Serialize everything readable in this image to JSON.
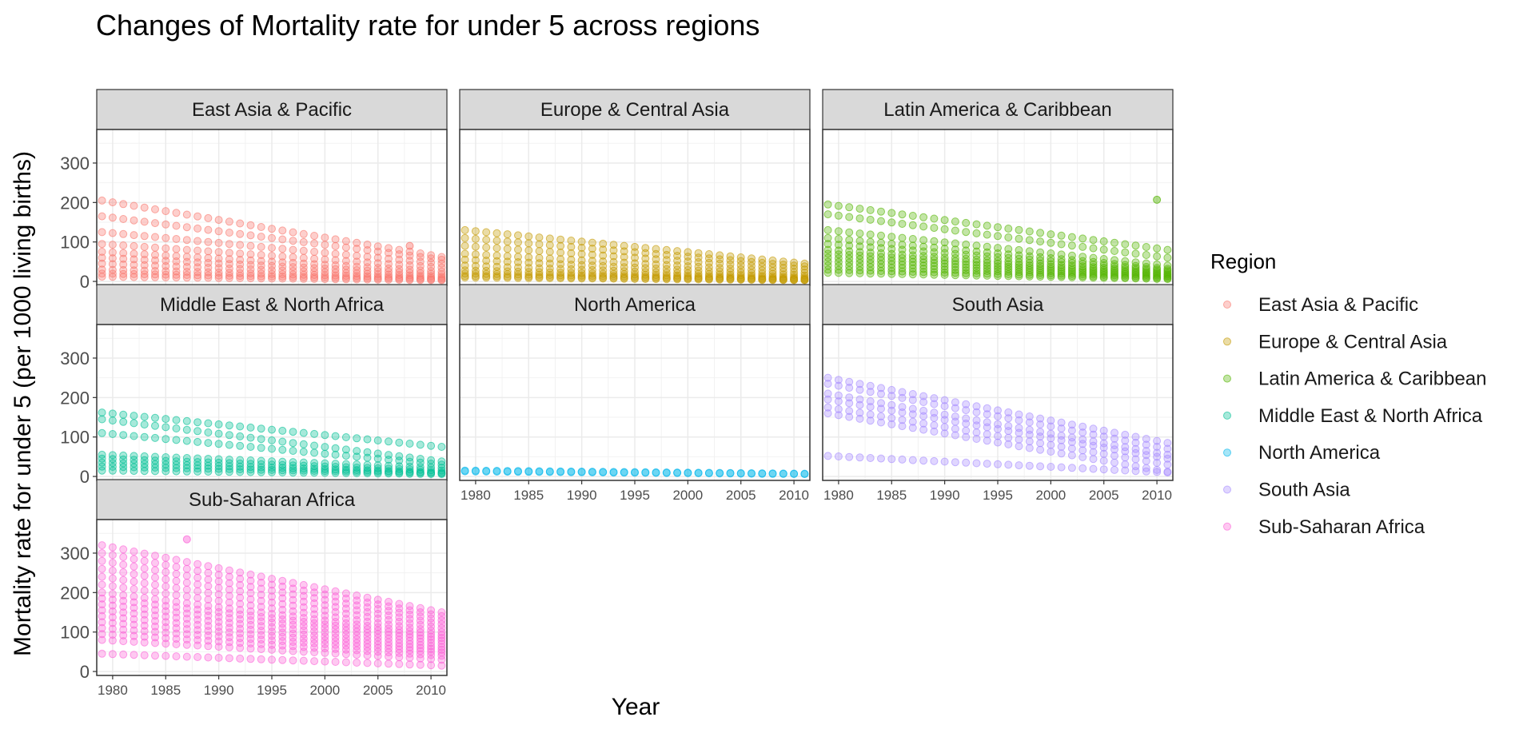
{
  "chart_data": {
    "type": "scatter",
    "facet": true,
    "title": "Changes of Mortality rate for under 5 across regions",
    "xlabel": "Year",
    "ylabel": "Mortality rate for under 5 (per 1000 living births)",
    "xlim": [
      1978.5,
      2011.5
    ],
    "ylim": [
      -10,
      385
    ],
    "x_ticks": [
      1980,
      1985,
      1990,
      1995,
      2000,
      2005,
      2010
    ],
    "x_tick_labels": [
      "1980",
      "1985",
      "1990",
      "1995",
      "2000",
      "2005",
      "2010"
    ],
    "y_ticks": [
      0,
      100,
      200,
      300
    ],
    "y_tick_labels": [
      "0",
      "100",
      "200",
      "300"
    ],
    "grid": true,
    "legend": {
      "title": "Region",
      "position": "right"
    },
    "marker_opacity": 0.35,
    "panels": [
      {
        "name": "East Asia & Pacific",
        "color": "#F8766D",
        "year_range": [
          1979,
          2011
        ],
        "lines": [
          {
            "start": 205,
            "end": 62
          },
          {
            "start": 165,
            "end": 55
          },
          {
            "start": 125,
            "end": 45
          },
          {
            "start": 95,
            "end": 35
          },
          {
            "start": 75,
            "end": 25
          },
          {
            "start": 60,
            "end": 18
          },
          {
            "start": 45,
            "end": 12
          },
          {
            "start": 30,
            "end": 8
          },
          {
            "start": 20,
            "end": 5
          },
          {
            "start": 12,
            "end": 3
          }
        ],
        "outliers": [
          {
            "x": 2008,
            "y": 90
          }
        ]
      },
      {
        "name": "Europe & Central Asia",
        "color": "#C49A00",
        "year_range": [
          1979,
          2011
        ],
        "lines": [
          {
            "start": 130,
            "end": 45
          },
          {
            "start": 110,
            "end": 38
          },
          {
            "start": 90,
            "end": 30
          },
          {
            "start": 70,
            "end": 22
          },
          {
            "start": 55,
            "end": 15
          },
          {
            "start": 40,
            "end": 10
          },
          {
            "start": 28,
            "end": 7
          },
          {
            "start": 20,
            "end": 5
          },
          {
            "start": 14,
            "end": 4
          },
          {
            "start": 10,
            "end": 3
          }
        ],
        "outliers": []
      },
      {
        "name": "Latin America & Caribbean",
        "color": "#53B400",
        "year_range": [
          1979,
          2011
        ],
        "lines": [
          {
            "start": 195,
            "end": 80
          },
          {
            "start": 170,
            "end": 60
          },
          {
            "start": 130,
            "end": 40
          },
          {
            "start": 110,
            "end": 32
          },
          {
            "start": 95,
            "end": 28
          },
          {
            "start": 80,
            "end": 24
          },
          {
            "start": 70,
            "end": 20
          },
          {
            "start": 60,
            "end": 17
          },
          {
            "start": 50,
            "end": 14
          },
          {
            "start": 40,
            "end": 11
          },
          {
            "start": 30,
            "end": 8
          },
          {
            "start": 22,
            "end": 6
          }
        ],
        "outliers": [
          {
            "x": 2010,
            "y": 207
          }
        ]
      },
      {
        "name": "Middle East & North Africa",
        "color": "#00C094",
        "year_range": [
          1979,
          2011
        ],
        "lines": [
          {
            "start": 162,
            "end": 75
          },
          {
            "start": 145,
            "end": 38
          },
          {
            "start": 110,
            "end": 30
          },
          {
            "start": 55,
            "end": 22
          },
          {
            "start": 45,
            "end": 15
          },
          {
            "start": 35,
            "end": 10
          },
          {
            "start": 25,
            "end": 8
          },
          {
            "start": 15,
            "end": 6
          }
        ],
        "outliers": []
      },
      {
        "name": "North America",
        "color": "#00B6EB",
        "year_range": [
          1979,
          2011
        ],
        "lines": [
          {
            "start": 15,
            "end": 7
          },
          {
            "start": 13,
            "end": 6
          }
        ],
        "outliers": []
      },
      {
        "name": "South Asia",
        "color": "#A58AFF",
        "year_range": [
          1979,
          2011
        ],
        "lines": [
          {
            "start": 250,
            "end": 85
          },
          {
            "start": 235,
            "end": 70
          },
          {
            "start": 210,
            "end": 55
          },
          {
            "start": 195,
            "end": 45
          },
          {
            "start": 175,
            "end": 30
          },
          {
            "start": 160,
            "end": 12
          },
          {
            "start": 52,
            "end": 10
          }
        ],
        "outliers": []
      },
      {
        "name": "Sub-Saharan Africa",
        "color": "#FB61D7",
        "year_range": [
          1979,
          2011
        ],
        "lines": [
          {
            "start": 320,
            "end": 150
          },
          {
            "start": 300,
            "end": 140
          },
          {
            "start": 280,
            "end": 130
          },
          {
            "start": 260,
            "end": 120
          },
          {
            "start": 240,
            "end": 110
          },
          {
            "start": 220,
            "end": 100
          },
          {
            "start": 200,
            "end": 92
          },
          {
            "start": 185,
            "end": 85
          },
          {
            "start": 170,
            "end": 78
          },
          {
            "start": 155,
            "end": 70
          },
          {
            "start": 140,
            "end": 62
          },
          {
            "start": 125,
            "end": 55
          },
          {
            "start": 110,
            "end": 48
          },
          {
            "start": 95,
            "end": 40
          },
          {
            "start": 80,
            "end": 30
          },
          {
            "start": 45,
            "end": 15
          }
        ],
        "outliers": [
          {
            "x": 1987,
            "y": 335
          }
        ]
      }
    ]
  }
}
